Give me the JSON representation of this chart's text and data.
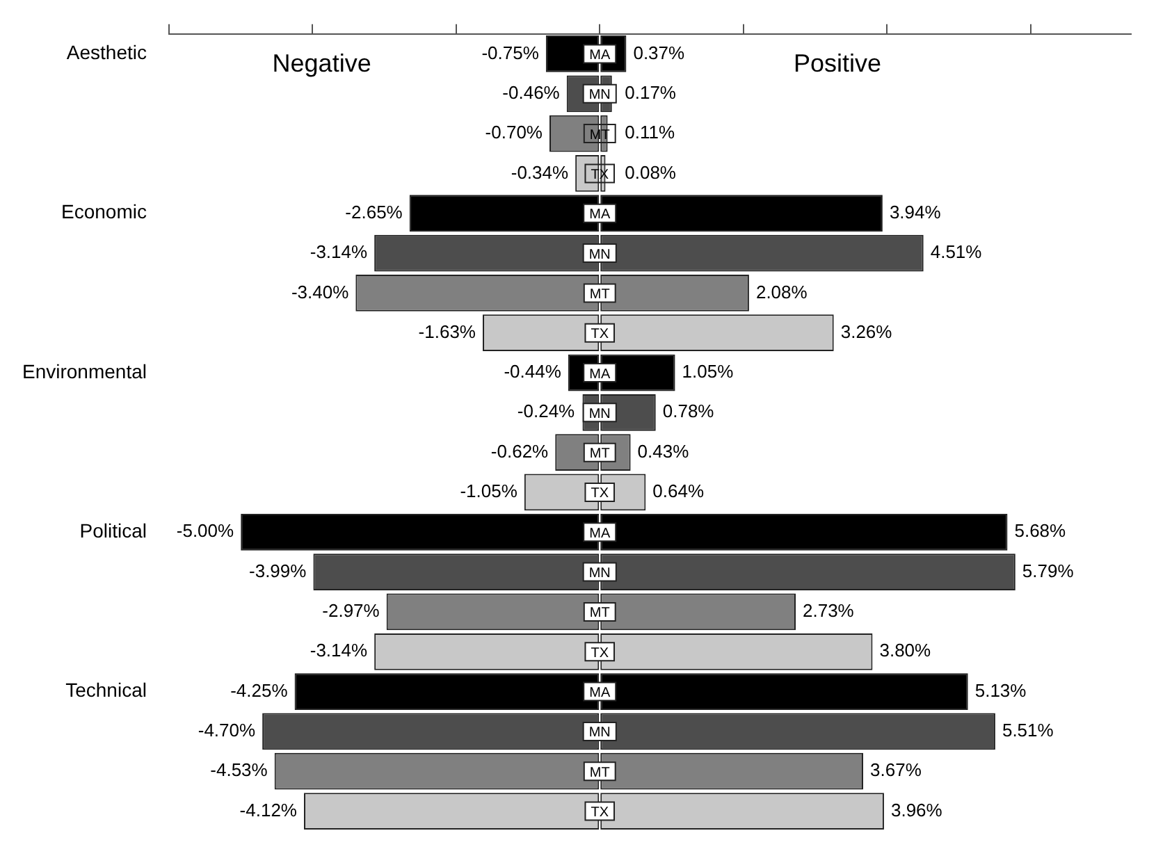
{
  "chart_data": {
    "type": "bar",
    "orientation": "horizontal",
    "stacked": true,
    "legend": false,
    "grid": false,
    "tick_labels": "y",
    "categories": [
      "Aesthetic",
      null,
      null,
      null,
      "Economic",
      null,
      null,
      null,
      "Environmental",
      null,
      null,
      null,
      "Political",
      null,
      null,
      null,
      "Technical",
      null,
      null,
      null
    ],
    "xlim": [
      -6,
      7.4
    ],
    "xticks": [
      {
        "value": -6,
        "label": null
      },
      {
        "value": -4,
        "label": null
      },
      {
        "value": -2,
        "label": null
      },
      {
        "value": 0,
        "label": null
      },
      {
        "value": 2,
        "label": null
      },
      {
        "value": 4,
        "label": null
      },
      {
        "value": 6,
        "label": null
      }
    ],
    "series": [
      {
        "colors": [
          "#000000",
          "#4d4d4d",
          "#808080",
          "#c8c8c8",
          "#000000",
          "#4d4d4d",
          "#808080",
          "#c8c8c8",
          "#000000",
          "#4d4d4d",
          "#808080",
          "#c8c8c8",
          "#000000",
          "#4d4d4d",
          "#808080",
          "#c8c8c8",
          "#000000",
          "#4d4d4d",
          "#808080",
          "#c8c8c8"
        ],
        "values": [
          -0.75,
          -0.46,
          -0.7,
          -0.34,
          -2.65,
          -3.14,
          -3.4,
          -1.63,
          -0.44,
          -0.24,
          -0.62,
          -1.05,
          -5.0,
          -3.99,
          -2.97,
          -3.14,
          -4.25,
          -4.7,
          -4.53,
          -4.12
        ],
        "value_labels": [
          "-0.75%",
          "-0.46%",
          "-0.70%",
          "-0.34%",
          "-2.65%",
          "-3.14%",
          "-3.40%",
          "-1.63%",
          "-0.44%",
          "-0.24%",
          "-0.62%",
          "-1.05%",
          "-5.00%",
          "-3.99%",
          "-2.97%",
          "-3.14%",
          "-4.25%",
          "-4.70%",
          "-4.53%",
          "-4.12%"
        ]
      },
      {
        "colors": [
          "#000000",
          "#4d4d4d",
          "#808080",
          "#c8c8c8",
          "#000000",
          "#4d4d4d",
          "#808080",
          "#c8c8c8",
          "#000000",
          "#4d4d4d",
          "#808080",
          "#c8c8c8",
          "#000000",
          "#4d4d4d",
          "#808080",
          "#c8c8c8",
          "#000000",
          "#4d4d4d",
          "#808080",
          "#c8c8c8"
        ],
        "values": [
          0.37,
          0.17,
          0.11,
          0.08,
          3.94,
          4.51,
          2.08,
          3.26,
          1.05,
          0.78,
          0.43,
          0.64,
          5.68,
          5.79,
          2.73,
          3.8,
          5.13,
          5.51,
          3.67,
          3.96
        ],
        "value_labels": [
          "0.37%",
          "0.17%",
          "0.11%",
          "0.08%",
          "3.94%",
          "4.51%",
          "2.08%",
          "3.26%",
          "1.05%",
          "0.78%",
          "0.43%",
          "0.64%",
          "5.68%",
          "5.79%",
          "2.73%",
          "3.80%",
          "5.13%",
          "5.51%",
          "3.67%",
          "3.96%"
        ]
      }
    ],
    "annotations": [
      "Negative",
      "Positive",
      "MA",
      "MN",
      "MT",
      "TX",
      "MA",
      "MN",
      "MT",
      "TX",
      "MA",
      "MN",
      "MT",
      "TX",
      "MA",
      "MN",
      "MT",
      "TX",
      "MA",
      "MN",
      "MT",
      "TX"
    ]
  }
}
